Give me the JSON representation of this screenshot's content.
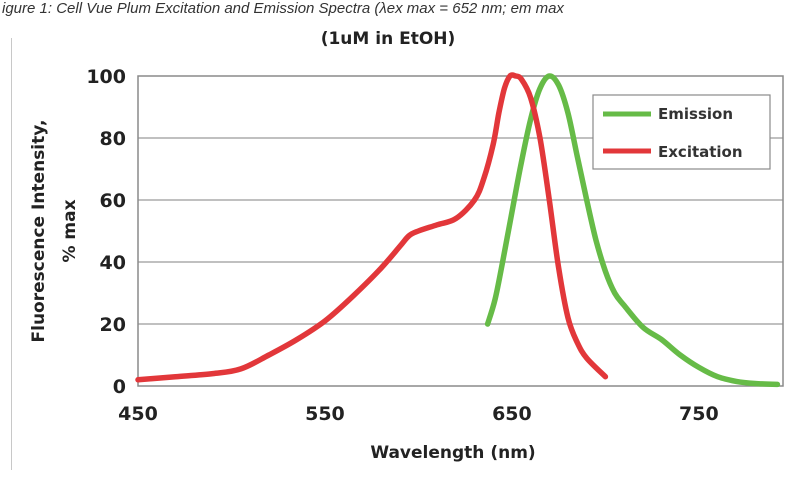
{
  "caption": "igure 1: Cell Vue Plum Excitation and Emission Spectra (λex max = 652 nm; em max",
  "chart_data": {
    "type": "line",
    "title": "(1uM in EtOH)",
    "xlabel": "Wavelength (nm)",
    "ylabel": [
      "Fluorescence Intensity,",
      "% max"
    ],
    "xlim": [
      450,
      795
    ],
    "ylim": [
      0,
      100
    ],
    "xticks": [
      450,
      550,
      650,
      750
    ],
    "yticks": [
      0,
      20,
      40,
      60,
      80,
      100
    ],
    "grid": "horizontal",
    "legend_position": "top-right",
    "series": [
      {
        "name": "Emission",
        "color": "#66bb47",
        "x": [
          637,
          641,
          645,
          650,
          655,
          660,
          665,
          670,
          675,
          680,
          685,
          690,
          695,
          700,
          705,
          710,
          720,
          730,
          740,
          750,
          760,
          770,
          780,
          792
        ],
        "y": [
          20,
          28,
          40,
          56,
          72,
          86,
          96,
          100,
          97,
          88,
          74,
          60,
          47,
          37,
          30,
          26,
          19,
          15,
          10,
          6,
          3,
          1.5,
          0.8,
          0.5
        ]
      },
      {
        "name": "Excitation",
        "color": "#e2373a",
        "x": [
          450,
          470,
          490,
          505,
          520,
          535,
          550,
          565,
          580,
          590,
          595,
          600,
          610,
          620,
          630,
          635,
          640,
          643,
          646,
          649,
          652,
          655,
          660,
          665,
          670,
          675,
          680,
          685,
          690,
          700
        ],
        "y": [
          2,
          3,
          4,
          5.5,
          10,
          15,
          21,
          29,
          38,
          45,
          48.5,
          50,
          52,
          54,
          60,
          67,
          78,
          88,
          96,
          100,
          100,
          99,
          93,
          80,
          60,
          38,
          22,
          14,
          9,
          3
        ]
      }
    ]
  }
}
